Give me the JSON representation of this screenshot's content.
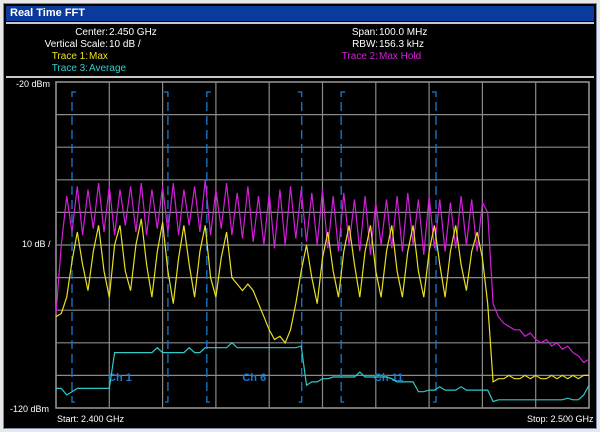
{
  "window": {
    "title": "Real Time FFT"
  },
  "header": {
    "center_label": "Center:",
    "center_value": "2.450 GHz",
    "vscale_label": "Vertical Scale:",
    "vscale_value": "10 dB /",
    "span_label": "Span:",
    "span_value": "100.0 MHz",
    "rbw_label": "RBW:",
    "rbw_value": "156.3 kHz",
    "trace1_label": "Trace 1:",
    "trace1_value": "Max",
    "trace2_label": "Trace 2:",
    "trace2_value": "Max Hold",
    "trace3_label": "Trace 3:",
    "trace3_value": "Average"
  },
  "chart_data": {
    "type": "line",
    "x_start_ghz": 2.4,
    "x_stop_ghz": 2.5,
    "x_step_mhz": 1,
    "ylim": [
      -120,
      -20
    ],
    "grid": true,
    "y_divisions": 10,
    "x_divisions": 10,
    "y_top_label": "-20 dBm",
    "y_mid_label": "10 dB /",
    "y_bottom_label": "-120 dBm",
    "x_start_label": "Start: 2.400 GHz",
    "x_stop_label": "Stop: 2.500 GHz",
    "series": [
      {
        "name": "Trace 2: Max Hold",
        "color": "#d020d8",
        "values": [
          -91,
          -70,
          -55,
          -66,
          -52,
          -67,
          -53,
          -65,
          -51,
          -66,
          -52,
          -67,
          -53,
          -64,
          -52,
          -66,
          -51,
          -67,
          -53,
          -65,
          -52,
          -66,
          -51,
          -67,
          -53,
          -64,
          -52,
          -66,
          -50,
          -67,
          -53,
          -65,
          -51,
          -67,
          -54,
          -68,
          -52,
          -69,
          -55,
          -70,
          -54,
          -71,
          -53,
          -70,
          -52,
          -68,
          -53,
          -69,
          -54,
          -70,
          -53,
          -71,
          -55,
          -72,
          -54,
          -70,
          -56,
          -72,
          -55,
          -73,
          -57,
          -70,
          -56,
          -71,
          -55,
          -72,
          -54,
          -70,
          -56,
          -73,
          -55,
          -71,
          -56,
          -72,
          -57,
          -71,
          -55,
          -70,
          -56,
          -72,
          -57,
          -60,
          -88,
          -92,
          -94,
          -95,
          -96,
          -96,
          -98,
          -97,
          -99,
          -100,
          -99,
          -101,
          -100,
          -102,
          -101,
          -103,
          -104,
          -106,
          -105
        ]
      },
      {
        "name": "Trace 1: Max",
        "color": "#e8e020",
        "values": [
          -92,
          -91,
          -86,
          -75,
          -66,
          -76,
          -84,
          -72,
          -64,
          -78,
          -86,
          -70,
          -64,
          -78,
          -84,
          -70,
          -62,
          -76,
          -86,
          -72,
          -63,
          -78,
          -88,
          -74,
          -64,
          -76,
          -86,
          -72,
          -64,
          -80,
          -86,
          -74,
          -66,
          -80,
          -82,
          -84,
          -82,
          -84,
          -88,
          -92,
          -96,
          -99,
          -98,
          -100,
          -96,
          -88,
          -78,
          -70,
          -80,
          -88,
          -74,
          -66,
          -78,
          -86,
          -72,
          -64,
          -76,
          -86,
          -72,
          -64,
          -78,
          -86,
          -72,
          -64,
          -78,
          -86,
          -72,
          -64,
          -78,
          -86,
          -72,
          -64,
          -76,
          -86,
          -72,
          -64,
          -76,
          -84,
          -72,
          -66,
          -74,
          -88,
          -112,
          -111,
          -111,
          -110,
          -111,
          -111,
          -110,
          -111,
          -110,
          -111,
          -111,
          -110,
          -111,
          -110,
          -111,
          -110,
          -111,
          -110,
          -110
        ]
      },
      {
        "name": "Trace 3: Average",
        "color": "#30c8c8",
        "values": [
          -114,
          -114,
          -116,
          -115,
          -114,
          -114,
          -114,
          -114,
          -114,
          -114,
          -114,
          -103,
          -103,
          -103,
          -103,
          -103,
          -103,
          -103,
          -103,
          -101.5,
          -103,
          -103,
          -103,
          -103,
          -103,
          -101.5,
          -103,
          -103,
          -101.5,
          -101.5,
          -101.5,
          -101.5,
          -101.5,
          -100,
          -101.5,
          -101.5,
          -101.5,
          -101.5,
          -101.5,
          -101.5,
          -101.5,
          -101.5,
          -101.5,
          -101.5,
          -101.5,
          -101.5,
          -101,
          -113,
          -112,
          -112,
          -111,
          -111,
          -110.5,
          -110.5,
          -110.5,
          -110.5,
          -110.5,
          -109,
          -110.5,
          -110.5,
          -110.5,
          -110.5,
          -110.5,
          -111,
          -112,
          -112,
          -112,
          -112,
          -115,
          -115,
          -114.5,
          -114.5,
          -113.5,
          -114.5,
          -114.5,
          -114.5,
          -113.5,
          -114.5,
          -114.5,
          -114.5,
          -114.5,
          -114.5,
          -118,
          -117.5,
          -117.5,
          -117.5,
          -117.5,
          -117.5,
          -117.5,
          -117.5,
          -117.5,
          -117.5,
          -117.5,
          -117.5,
          -117.5,
          -117.5,
          -117,
          -117.5,
          -117.5,
          -116,
          -113
        ]
      }
    ],
    "channels": [
      {
        "label": "Ch 1",
        "start_mhz": 3,
        "stop_mhz": 21
      },
      {
        "label": "Ch 6",
        "start_mhz": 28.3,
        "stop_mhz": 46.1
      },
      {
        "label": "Ch 11",
        "start_mhz": 53.5,
        "stop_mhz": 71.3
      }
    ],
    "channel_color": "#1a7ad0"
  }
}
